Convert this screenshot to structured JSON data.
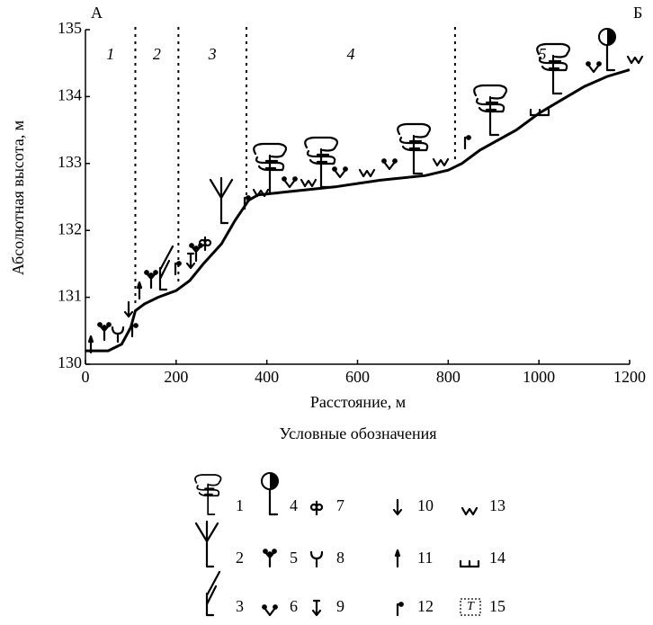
{
  "chart_data": {
    "type": "line",
    "corner_labels": [
      "А",
      "Б"
    ],
    "ylabel": "Абсолютная высота, м",
    "xlabel": "Расстояние, м",
    "x": [
      0,
      50,
      80,
      100,
      110,
      130,
      160,
      200,
      230,
      260,
      300,
      330,
      360,
      380,
      450,
      550,
      650,
      750,
      800,
      830,
      870,
      950,
      1000,
      1050,
      1100,
      1150,
      1200
    ],
    "values": [
      130.2,
      130.2,
      130.3,
      130.55,
      130.8,
      130.9,
      131.0,
      131.1,
      131.25,
      131.5,
      131.8,
      132.15,
      132.45,
      132.53,
      132.58,
      132.65,
      132.75,
      132.82,
      132.9,
      133.0,
      133.2,
      133.5,
      133.75,
      133.95,
      134.15,
      134.3,
      134.4
    ],
    "color": "#000000",
    "xlim": [
      0,
      1200
    ],
    "xticks": [
      0,
      200,
      400,
      600,
      800,
      1000,
      1200
    ],
    "ylim": [
      130,
      135
    ],
    "yticks": [
      130,
      131,
      132,
      133,
      134,
      135
    ],
    "zone_boundaries": [
      110,
      205,
      355,
      815
    ],
    "zones": [
      "1",
      "2",
      "3",
      "4",
      "5"
    ],
    "legend_title": "Условные обозначения",
    "legend_numbers": [
      1,
      2,
      3,
      4,
      5,
      6,
      7,
      8,
      9,
      10,
      11,
      12,
      13,
      14,
      15
    ]
  }
}
